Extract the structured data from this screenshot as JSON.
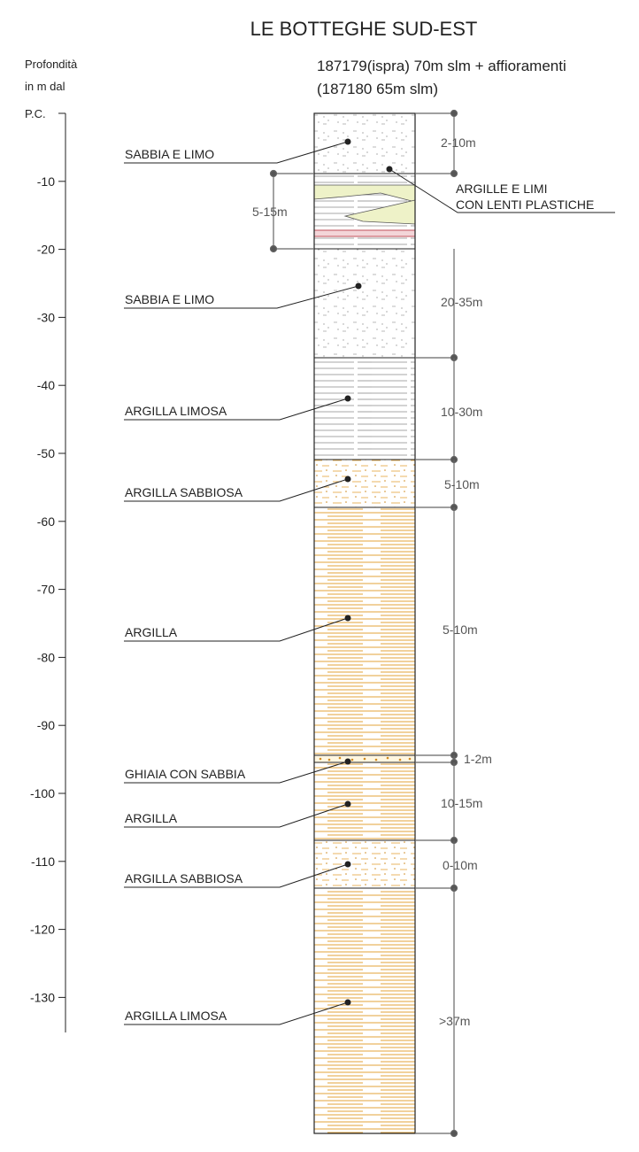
{
  "title": "LE BOTTEGHE SUD-EST",
  "subtitle_line1": "187179(ispra) 70m slm + affioramenti",
  "subtitle_line2": "(187180 65m slm)",
  "axis": {
    "label_line1": "Profondità",
    "label_line2": "in m dal",
    "label_line3": "P.C.",
    "ticks": [
      "-10",
      "-20",
      "-30",
      "-40",
      "-50",
      "-60",
      "-70",
      "-80",
      "-90",
      "-100",
      "-110",
      "-120",
      "-130"
    ]
  },
  "labels": [
    "SABBIA E LIMO",
    "ARGILLE E LIMI",
    "CON LENTI PLASTICHE",
    "SABBIA E LIMO",
    "ARGILLA LIMOSA",
    "ARGILLA SABBIOSA",
    "ARGILLA",
    "GHIAIA CON SABBIA",
    "ARGILLA",
    "ARGILLA SABBIOSA",
    "ARGILLA LIMOSA"
  ],
  "thickness": [
    "2-10m",
    "5-15m",
    "20-35m",
    "10-30m",
    "5-10m",
    "5-10m",
    "1-2m",
    "10-15m",
    "0-10m",
    ">37m"
  ],
  "colors": {
    "orange_clay": "#e3a33a",
    "gray_lines": "#8a8a8a",
    "lens_fill": "#eef2c8",
    "red_band": "#c0505a",
    "dim_line": "#666666"
  }
}
